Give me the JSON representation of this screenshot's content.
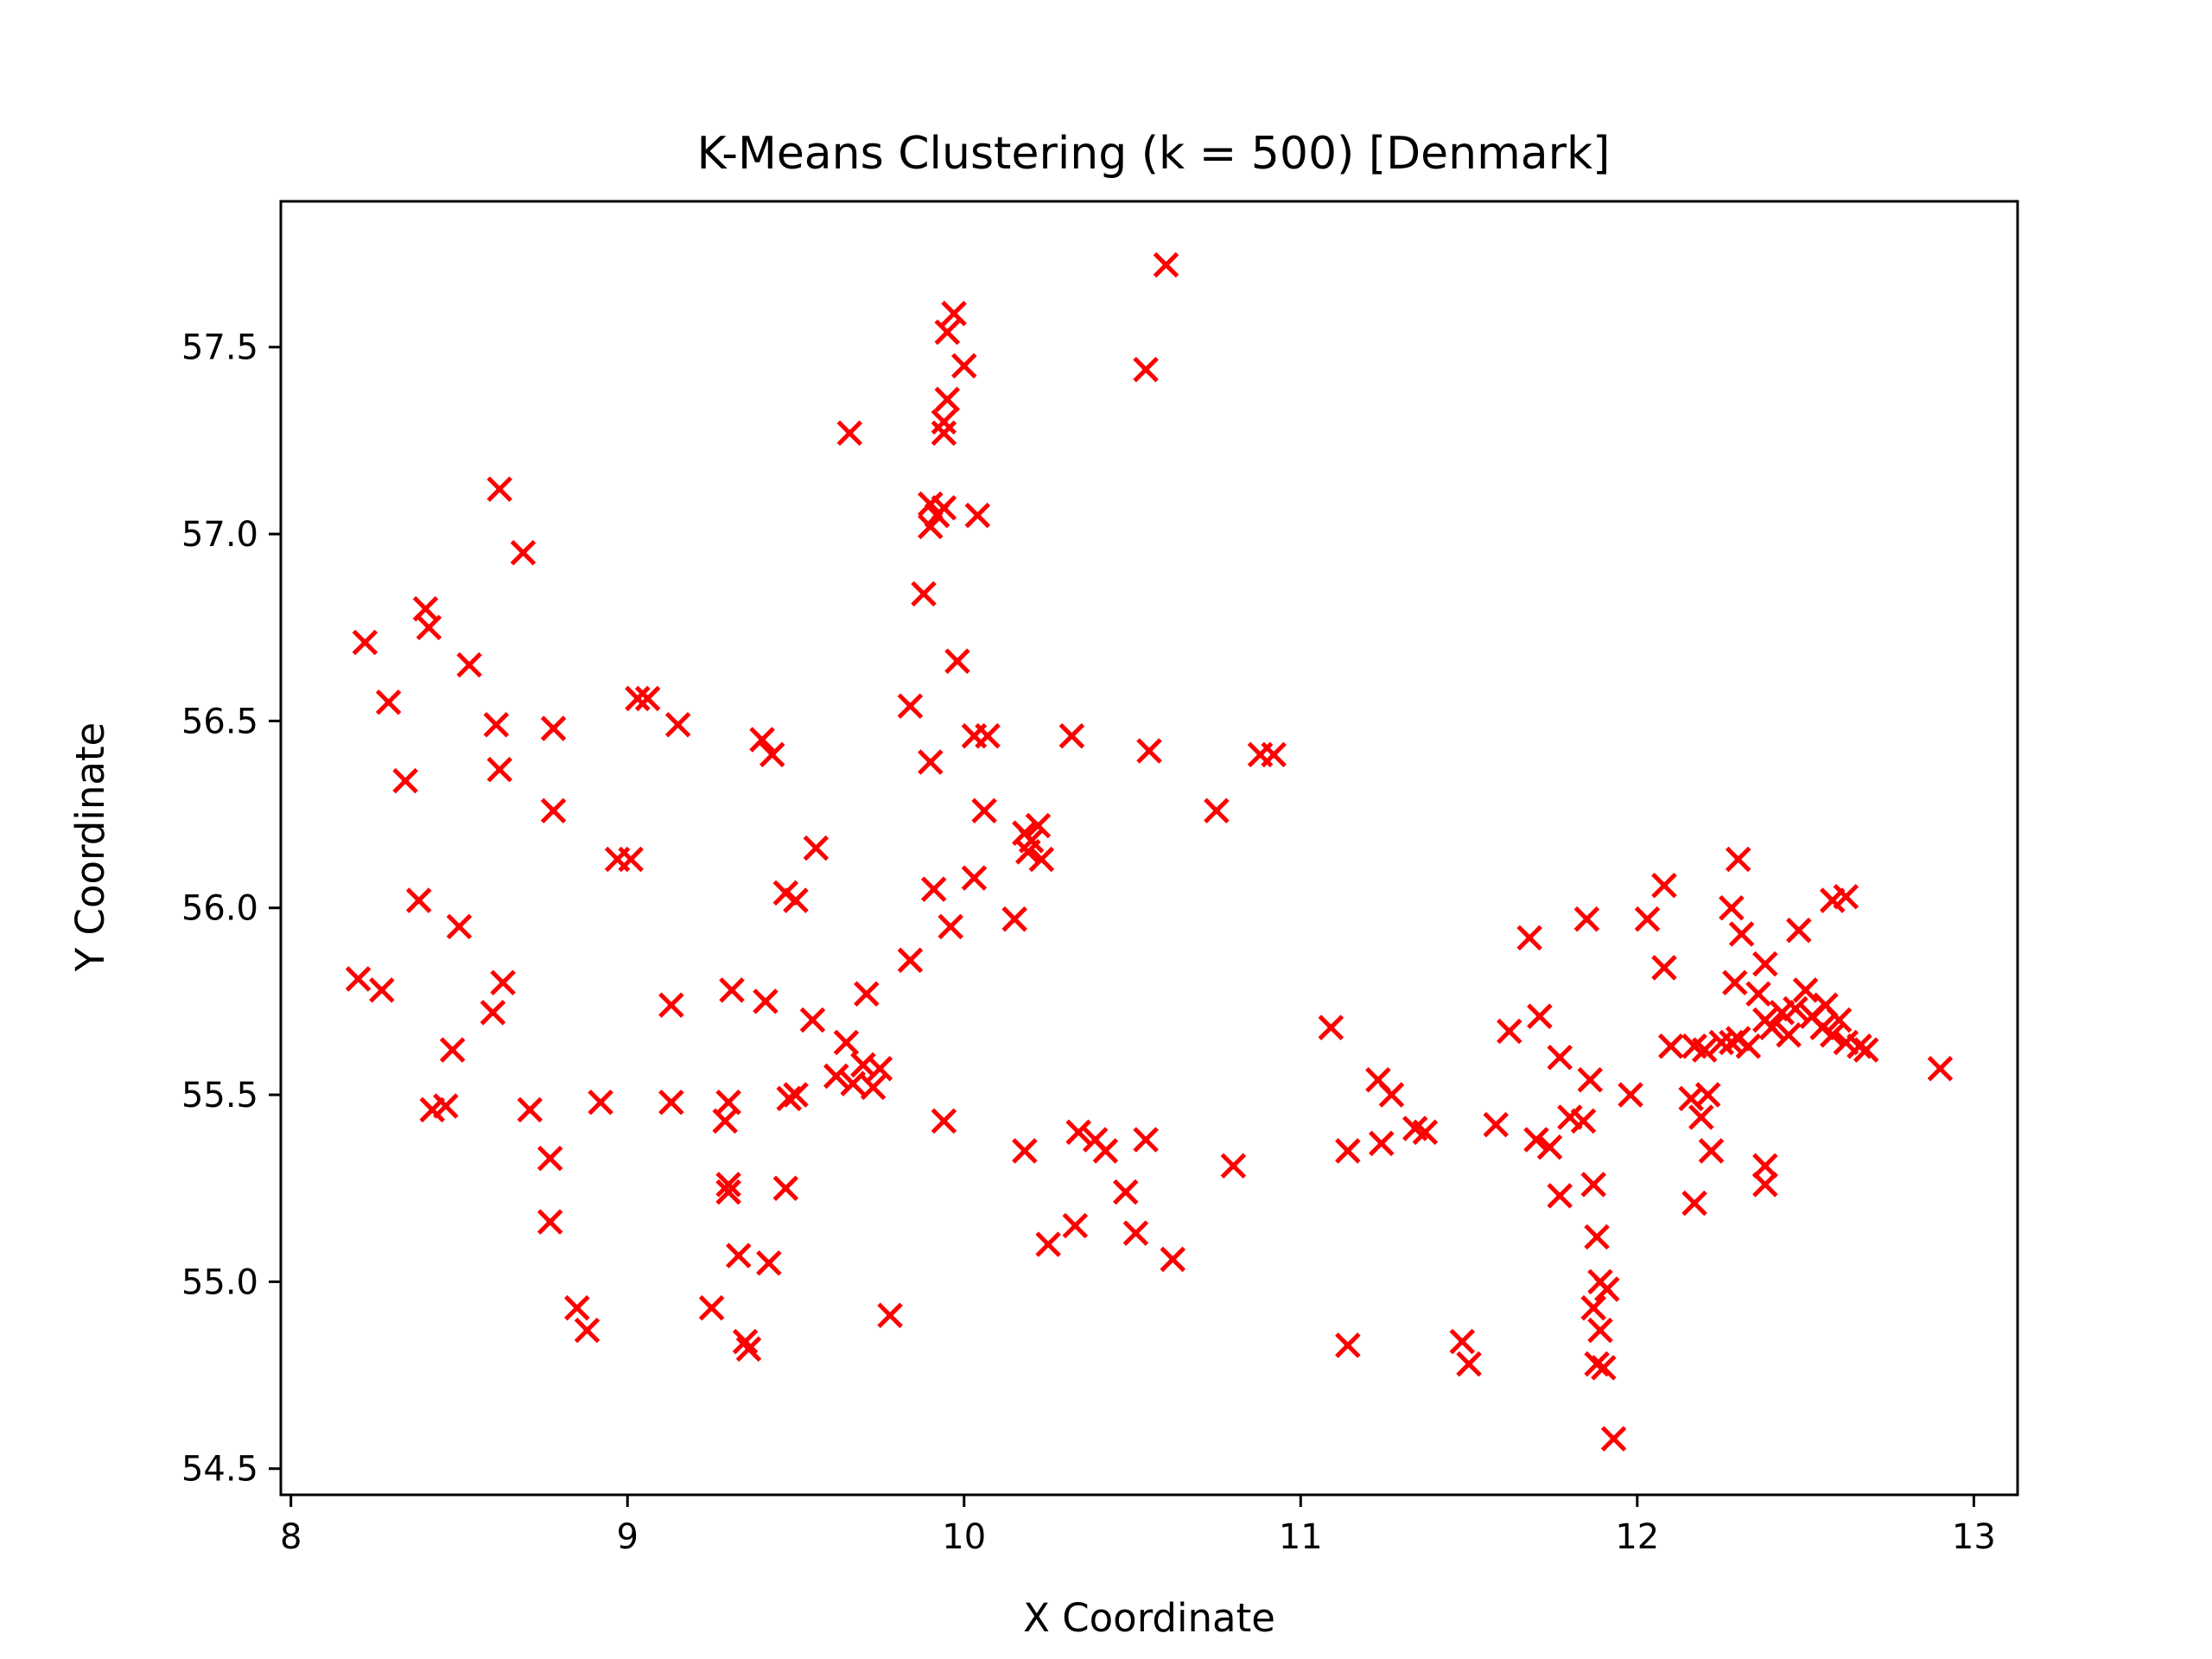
{
  "chart_data": {
    "type": "scatter",
    "title": "K-Means Clustering (k = 500) [Denmark]",
    "xlabel": "X Coordinate",
    "ylabel": "Y Coordinate",
    "xlim": [
      7.97,
      13.13
    ],
    "ylim": [
      54.43,
      57.89
    ],
    "xticks": [
      "8",
      "9",
      "10",
      "11",
      "12",
      "13"
    ],
    "yticks": [
      "54.5",
      "55.0",
      "55.5",
      "56.0",
      "56.5",
      "57.0",
      "57.5"
    ],
    "grid": false,
    "legend": "none",
    "colors": {
      "centroid": "#ff0000",
      "points": "#1f3fb4",
      "axes": "#000000"
    },
    "series": [
      {
        "marker": "x",
        "points": [
          [
            10.6,
            57.72
          ],
          [
            10.54,
            57.44
          ],
          [
            9.97,
            57.59
          ],
          [
            9.95,
            57.54
          ],
          [
            10.0,
            57.45
          ],
          [
            9.95,
            57.36
          ],
          [
            9.94,
            57.3
          ],
          [
            9.94,
            57.27
          ],
          [
            9.66,
            57.27
          ],
          [
            9.9,
            57.08
          ],
          [
            9.92,
            57.05
          ],
          [
            9.94,
            57.07
          ],
          [
            9.9,
            57.02
          ],
          [
            10.04,
            57.05
          ],
          [
            8.62,
            57.12
          ],
          [
            8.69,
            56.95
          ],
          [
            9.88,
            56.84
          ],
          [
            8.4,
            56.8
          ],
          [
            8.41,
            56.75
          ],
          [
            8.22,
            56.71
          ],
          [
            8.53,
            56.65
          ],
          [
            9.98,
            56.66
          ],
          [
            8.29,
            56.55
          ],
          [
            9.03,
            56.56
          ],
          [
            9.06,
            56.56
          ],
          [
            8.61,
            56.49
          ],
          [
            8.78,
            56.48
          ],
          [
            9.15,
            56.49
          ],
          [
            9.84,
            56.54
          ],
          [
            10.03,
            56.46
          ],
          [
            10.07,
            56.46
          ],
          [
            10.32,
            56.46
          ],
          [
            9.4,
            56.45
          ],
          [
            9.43,
            56.41
          ],
          [
            9.9,
            56.39
          ],
          [
            10.55,
            56.42
          ],
          [
            10.88,
            56.41
          ],
          [
            10.92,
            56.41
          ],
          [
            8.62,
            56.37
          ],
          [
            8.34,
            56.34
          ],
          [
            8.78,
            56.26
          ],
          [
            10.06,
            56.26
          ],
          [
            10.75,
            56.26
          ],
          [
            10.18,
            56.2
          ],
          [
            10.22,
            56.22
          ],
          [
            10.19,
            56.15
          ],
          [
            10.23,
            56.13
          ],
          [
            10.2,
            56.18
          ],
          [
            9.56,
            56.16
          ],
          [
            8.97,
            56.13
          ],
          [
            9.01,
            56.13
          ],
          [
            10.03,
            56.08
          ],
          [
            9.91,
            56.05
          ],
          [
            9.47,
            56.04
          ],
          [
            9.5,
            56.02
          ],
          [
            8.38,
            56.02
          ],
          [
            10.15,
            55.97
          ],
          [
            9.96,
            55.95
          ],
          [
            8.5,
            55.95
          ],
          [
            9.84,
            55.86
          ],
          [
            8.2,
            55.81
          ],
          [
            8.27,
            55.78
          ],
          [
            8.63,
            55.8
          ],
          [
            8.6,
            55.72
          ],
          [
            9.13,
            55.74
          ],
          [
            9.31,
            55.78
          ],
          [
            9.41,
            55.75
          ],
          [
            9.71,
            55.77
          ],
          [
            9.55,
            55.7
          ],
          [
            9.65,
            55.64
          ],
          [
            8.48,
            55.62
          ],
          [
            9.62,
            55.55
          ],
          [
            9.7,
            55.58
          ],
          [
            9.75,
            55.57
          ],
          [
            9.67,
            55.53
          ],
          [
            9.73,
            55.52
          ],
          [
            8.46,
            55.47
          ],
          [
            8.42,
            55.46
          ],
          [
            8.71,
            55.46
          ],
          [
            8.92,
            55.48
          ],
          [
            9.13,
            55.48
          ],
          [
            9.3,
            55.48
          ],
          [
            9.29,
            55.43
          ],
          [
            9.48,
            55.49
          ],
          [
            9.5,
            55.5
          ],
          [
            9.94,
            55.43
          ],
          [
            8.77,
            55.33
          ],
          [
            8.77,
            55.16
          ],
          [
            9.3,
            55.26
          ],
          [
            9.3,
            55.24
          ],
          [
            9.47,
            55.25
          ],
          [
            9.33,
            55.07
          ],
          [
            9.42,
            55.05
          ],
          [
            8.85,
            54.93
          ],
          [
            8.88,
            54.87
          ],
          [
            9.25,
            54.93
          ],
          [
            9.35,
            54.84
          ],
          [
            9.36,
            54.82
          ],
          [
            9.78,
            54.91
          ],
          [
            10.18,
            55.35
          ],
          [
            10.34,
            55.4
          ],
          [
            10.39,
            55.38
          ],
          [
            10.42,
            55.35
          ],
          [
            10.54,
            55.38
          ],
          [
            10.48,
            55.24
          ],
          [
            10.33,
            55.15
          ],
          [
            10.25,
            55.1
          ],
          [
            10.51,
            55.13
          ],
          [
            10.62,
            55.06
          ],
          [
            10.8,
            55.31
          ],
          [
            11.09,
            55.68
          ],
          [
            11.14,
            55.35
          ],
          [
            11.23,
            55.54
          ],
          [
            11.27,
            55.5
          ],
          [
            11.24,
            55.37
          ],
          [
            11.34,
            55.41
          ],
          [
            11.37,
            55.4
          ],
          [
            11.14,
            54.83
          ],
          [
            11.48,
            54.84
          ],
          [
            11.5,
            54.78
          ],
          [
            11.58,
            55.42
          ],
          [
            11.62,
            55.67
          ],
          [
            11.68,
            55.92
          ],
          [
            11.71,
            55.71
          ],
          [
            11.7,
            55.38
          ],
          [
            11.74,
            55.36
          ],
          [
            11.77,
            55.6
          ],
          [
            11.8,
            55.44
          ],
          [
            11.84,
            55.43
          ],
          [
            11.86,
            55.54
          ],
          [
            11.85,
            55.97
          ],
          [
            11.77,
            55.23
          ],
          [
            11.87,
            55.26
          ],
          [
            11.88,
            55.12
          ],
          [
            11.89,
            55.0
          ],
          [
            11.91,
            54.98
          ],
          [
            11.87,
            54.93
          ],
          [
            11.89,
            54.87
          ],
          [
            11.88,
            54.78
          ],
          [
            11.9,
            54.77
          ],
          [
            11.93,
            54.58
          ],
          [
            11.98,
            55.5
          ],
          [
            12.03,
            55.97
          ],
          [
            12.08,
            56.06
          ],
          [
            12.08,
            55.84
          ],
          [
            12.1,
            55.63
          ],
          [
            12.17,
            55.63
          ],
          [
            12.16,
            55.49
          ],
          [
            12.19,
            55.44
          ],
          [
            12.21,
            55.5
          ],
          [
            12.22,
            55.35
          ],
          [
            12.17,
            55.21
          ],
          [
            12.28,
            55.64
          ],
          [
            12.3,
            55.65
          ],
          [
            12.29,
            55.8
          ],
          [
            12.28,
            56.0
          ],
          [
            12.31,
            55.93
          ],
          [
            12.3,
            56.13
          ],
          [
            12.36,
            55.77
          ],
          [
            12.38,
            55.85
          ],
          [
            12.38,
            55.7
          ],
          [
            12.4,
            55.68
          ],
          [
            12.43,
            55.72
          ],
          [
            12.45,
            55.66
          ],
          [
            12.47,
            55.73
          ],
          [
            12.5,
            55.78
          ],
          [
            12.52,
            55.71
          ],
          [
            12.55,
            55.68
          ],
          [
            12.56,
            55.74
          ],
          [
            12.58,
            55.66
          ],
          [
            12.6,
            55.7
          ],
          [
            12.62,
            55.64
          ],
          [
            12.66,
            55.63
          ],
          [
            12.68,
            55.62
          ],
          [
            12.33,
            55.63
          ],
          [
            12.25,
            55.64
          ],
          [
            12.2,
            55.62
          ],
          [
            12.48,
            55.94
          ],
          [
            12.58,
            56.02
          ],
          [
            12.62,
            56.03
          ],
          [
            12.38,
            55.31
          ],
          [
            12.38,
            55.26
          ],
          [
            12.9,
            55.57
          ]
        ]
      }
    ]
  }
}
